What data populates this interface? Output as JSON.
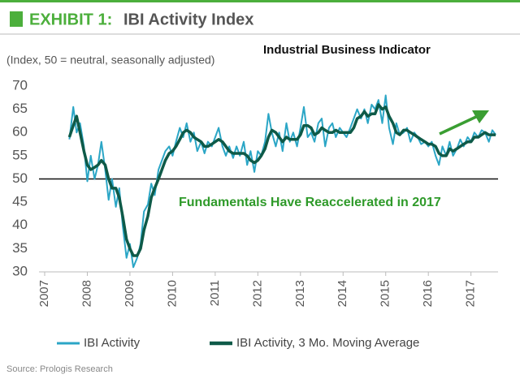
{
  "chart_data": {
    "type": "line",
    "exhibit": "EXHIBIT 1:",
    "title": "IBI Activity Index",
    "subtitle": "(Index, 50 = neutral, seasonally adjusted)",
    "annotations": [
      "Industrial Business Indicator",
      "Fundamentals Have Reaccelerated in 2017"
    ],
    "source": "Source: Prologis Research",
    "xlim": [
      2007,
      2017.75
    ],
    "xticks": [
      2007,
      2008,
      2009,
      2010,
      2011,
      2012,
      2013,
      2014,
      2015,
      2016,
      2017
    ],
    "ylim": [
      30,
      70
    ],
    "yticks": [
      30,
      35,
      40,
      45,
      50,
      55,
      60,
      65,
      70
    ],
    "hline": 50,
    "grid": false,
    "legend": "bottom",
    "x": [
      2007.58,
      2007.67,
      2007.75,
      2007.83,
      2007.92,
      2008.0,
      2008.08,
      2008.17,
      2008.25,
      2008.33,
      2008.42,
      2008.5,
      2008.58,
      2008.67,
      2008.75,
      2008.83,
      2008.92,
      2009.0,
      2009.08,
      2009.17,
      2009.25,
      2009.33,
      2009.42,
      2009.5,
      2009.58,
      2009.67,
      2009.75,
      2009.83,
      2009.92,
      2010.0,
      2010.08,
      2010.17,
      2010.25,
      2010.33,
      2010.42,
      2010.5,
      2010.58,
      2010.67,
      2010.75,
      2010.83,
      2010.92,
      2011.0,
      2011.08,
      2011.17,
      2011.25,
      2011.33,
      2011.42,
      2011.5,
      2011.58,
      2011.67,
      2011.75,
      2011.83,
      2011.92,
      2012.0,
      2012.08,
      2012.17,
      2012.25,
      2012.33,
      2012.42,
      2012.5,
      2012.58,
      2012.67,
      2012.75,
      2012.83,
      2012.92,
      2013.0,
      2013.08,
      2013.17,
      2013.25,
      2013.33,
      2013.42,
      2013.5,
      2013.58,
      2013.67,
      2013.75,
      2013.83,
      2013.92,
      2014.0,
      2014.08,
      2014.17,
      2014.25,
      2014.33,
      2014.42,
      2014.5,
      2014.58,
      2014.67,
      2014.75,
      2014.83,
      2014.92,
      2015.0,
      2015.08,
      2015.17,
      2015.25,
      2015.33,
      2015.42,
      2015.5,
      2015.58,
      2015.67,
      2015.75,
      2015.83,
      2015.92,
      2016.0,
      2016.08,
      2016.17,
      2016.25,
      2016.33,
      2016.42,
      2016.5,
      2016.58,
      2016.67,
      2016.75,
      2016.83,
      2016.92,
      2017.0,
      2017.08,
      2017.17,
      2017.25,
      2017.33,
      2017.42,
      2017.5,
      2017.58
    ],
    "series": [
      {
        "name": "IBI Activity",
        "color": "#2ba6c6",
        "width": 2,
        "values": [
          58.5,
          65.5,
          60,
          62,
          57,
          49.5,
          55,
          50,
          53,
          58,
          52,
          45.5,
          50,
          44,
          48,
          40,
          33,
          36,
          31,
          33,
          36,
          43,
          44.5,
          49,
          46.5,
          52,
          54,
          56,
          57,
          55,
          58,
          61,
          59,
          62,
          58,
          60,
          56,
          58,
          55.5,
          58,
          57,
          59,
          61,
          57,
          55,
          57,
          54.5,
          57,
          55,
          58,
          53,
          56,
          51.5,
          56,
          55,
          58,
          64,
          60,
          57,
          60,
          56,
          62,
          58,
          60,
          57,
          61,
          65.5,
          59,
          60,
          58,
          62,
          63,
          57,
          61,
          62,
          59,
          61,
          60,
          59,
          61,
          63,
          65,
          63,
          65,
          62,
          66,
          65,
          67,
          62,
          68,
          61,
          57.5,
          62,
          59.5,
          60,
          61,
          58,
          60,
          59,
          57.5,
          58,
          57,
          58,
          55,
          53,
          57,
          55,
          58,
          55,
          56.5,
          58.5,
          57,
          59,
          58,
          60,
          59,
          60.5,
          60,
          58,
          60.5,
          59.5
        ]
      },
      {
        "name": "IBI Activity, 3 Mo. Moving Average",
        "color": "#0e5a48",
        "width": 3.5,
        "values": [
          59,
          61.5,
          63.5,
          60,
          56,
          53,
          52,
          52.5,
          53,
          54,
          53,
          50,
          48,
          48,
          46,
          42,
          37,
          35,
          33.5,
          33.5,
          35,
          39,
          42,
          46,
          48,
          50,
          52,
          54,
          55.5,
          56,
          57,
          58.5,
          60,
          60.5,
          60,
          59,
          58.5,
          58,
          57,
          57,
          57.5,
          58,
          58.5,
          58,
          57,
          56,
          55.5,
          55.5,
          55.5,
          55.5,
          55,
          54,
          53.5,
          54,
          55,
          56.5,
          59,
          60.5,
          60,
          59,
          58,
          59,
          58.5,
          58.5,
          58.5,
          59.5,
          61.5,
          61.5,
          61,
          59.5,
          60,
          61,
          60.5,
          60,
          60,
          60.5,
          60,
          60,
          60,
          60,
          61,
          63,
          63.5,
          64.5,
          63.5,
          64,
          64,
          66,
          65,
          65.5,
          63.5,
          62,
          60,
          59.5,
          60.5,
          60.5,
          60,
          59.5,
          59,
          58.5,
          58,
          57.5,
          57.5,
          57,
          55.5,
          55,
          55,
          56.5,
          56,
          56.5,
          57,
          57.5,
          58,
          58,
          59,
          59,
          59.5,
          60,
          59.5,
          59.5,
          59.5
        ]
      }
    ]
  }
}
